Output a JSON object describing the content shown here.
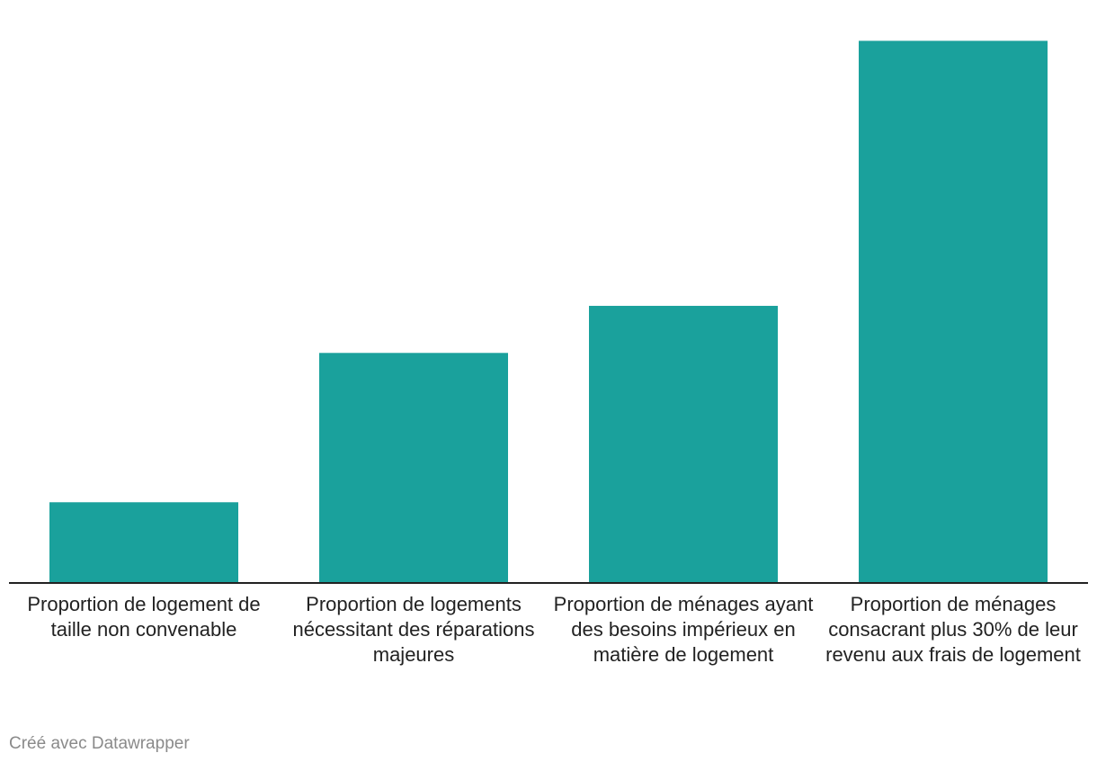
{
  "chart_data": {
    "type": "bar",
    "categories": [
      "Proportion de logement de taille non convenable",
      "Proportion de logements nécessitant des réparations majeures",
      "Proportion de ménages ayant des besoins impérieux en matière de logement",
      "Proportion de ménages consacrant plus 30% de leur revenu aux frais de logement"
    ],
    "values": [
      6,
      17.1,
      20.6,
      40.3
    ],
    "title": "",
    "xlabel": "",
    "ylabel": "",
    "ylim": [
      0,
      43
    ],
    "grid": false,
    "legend": "none",
    "bar_color": "#1aa19c",
    "axis_color": "#222222"
  },
  "footer": {
    "credit": "Créé avec Datawrapper"
  }
}
